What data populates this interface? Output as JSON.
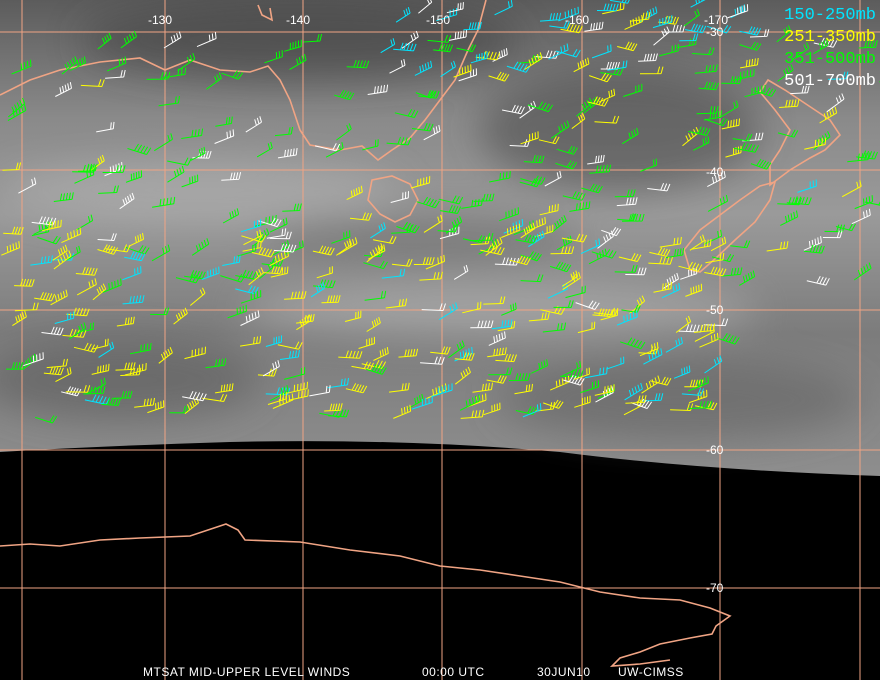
{
  "map": {
    "longitude_labels": [
      "-130",
      "-140",
      "-150",
      "-160",
      "-170"
    ],
    "latitude_labels": [
      "-30",
      "-40",
      "-50",
      "-60",
      "-70"
    ],
    "legend": [
      {
        "label": "150-250mb",
        "color": "#00e5ff"
      },
      {
        "label": "251-350mb",
        "color": "#ffff00"
      },
      {
        "label": "351-500mb",
        "color": "#00ff00"
      },
      {
        "label": "501-700mb",
        "color": "#ffffff"
      }
    ],
    "footer": [
      "MTSAT MID-UPPER LEVEL WINDS",
      "00:00 UTC",
      "30JUN10",
      "UW-CIMSS"
    ]
  }
}
